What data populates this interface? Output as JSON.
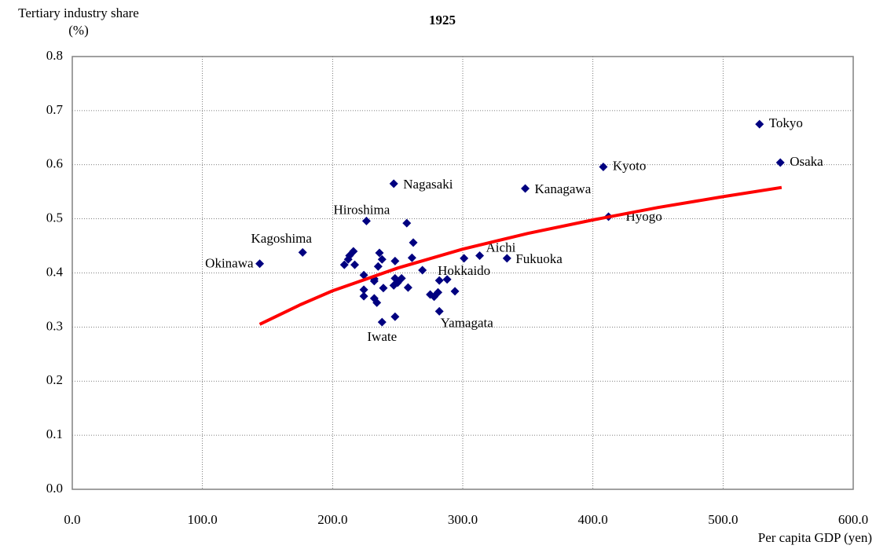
{
  "chart_data": {
    "type": "scatter",
    "title": "1925",
    "ylabel": "Tertiary industry share (%)",
    "xlabel": "Per capita GDP (yen)",
    "xlim": [
      0,
      600
    ],
    "ylim": [
      0,
      0.8
    ],
    "xticks": [
      {
        "value": 0,
        "label": "0.0"
      },
      {
        "value": 100,
        "label": "100.0"
      },
      {
        "value": 200,
        "label": "200.0"
      },
      {
        "value": 300,
        "label": "300.0"
      },
      {
        "value": 400,
        "label": "400.0"
      },
      {
        "value": 500,
        "label": "500.0"
      },
      {
        "value": 600,
        "label": "600.0"
      }
    ],
    "yticks": [
      {
        "value": 0,
        "label": "0.0"
      },
      0.1,
      0.2,
      0.3,
      0.4,
      0.5,
      0.6,
      0.7,
      0.8
    ],
    "grid": true,
    "series": [
      {
        "type": "scatter",
        "color": "#000080",
        "x": [
          528,
          544,
          408,
          348,
          247,
          412,
          226,
          177,
          144,
          313,
          334,
          301,
          282,
          238,
          209,
          213,
          216,
          217,
          212,
          236,
          238,
          235,
          224,
          232,
          232,
          224,
          224,
          232,
          234,
          239,
          248,
          248,
          247,
          253,
          250,
          257,
          262,
          261,
          258,
          248,
          269,
          275,
          278,
          281,
          282,
          288,
          294
        ],
        "values": [
          0.675,
          0.604,
          0.596,
          0.556,
          0.565,
          0.504,
          0.496,
          0.438,
          0.417,
          0.432,
          0.427,
          0.427,
          0.329,
          0.309,
          0.415,
          0.432,
          0.44,
          0.415,
          0.425,
          0.437,
          0.425,
          0.412,
          0.396,
          0.389,
          0.385,
          0.369,
          0.357,
          0.353,
          0.345,
          0.372,
          0.422,
          0.39,
          0.377,
          0.39,
          0.382,
          0.492,
          0.456,
          0.428,
          0.373,
          0.319,
          0.405,
          0.36,
          0.356,
          0.364,
          0.386,
          0.388,
          0.366
        ],
        "labels": [
          "Tokyo",
          "Osaka",
          "Kyoto",
          "Kanagawa",
          "Nagasaki",
          "Hyogo",
          "Hiroshima",
          "Kagoshima",
          "Okinawa",
          "Aichi",
          "Fukuoka",
          "Hokkaido",
          "Yamagata",
          "Iwate",
          null,
          null,
          null,
          null,
          null,
          null,
          null,
          null,
          null,
          null,
          null,
          null,
          null,
          null,
          null,
          null,
          null,
          null,
          null,
          null,
          null,
          null,
          null,
          null,
          null,
          null,
          null,
          null,
          null,
          null,
          null,
          null,
          null
        ]
      },
      {
        "type": "line",
        "color": "#ff0000",
        "x": [
          144,
          175,
          200,
          250,
          300,
          350,
          400,
          450,
          500,
          545
        ],
        "values": [
          0.305,
          0.341,
          0.367,
          0.409,
          0.444,
          0.473,
          0.498,
          0.521,
          0.541,
          0.558
        ]
      }
    ]
  }
}
